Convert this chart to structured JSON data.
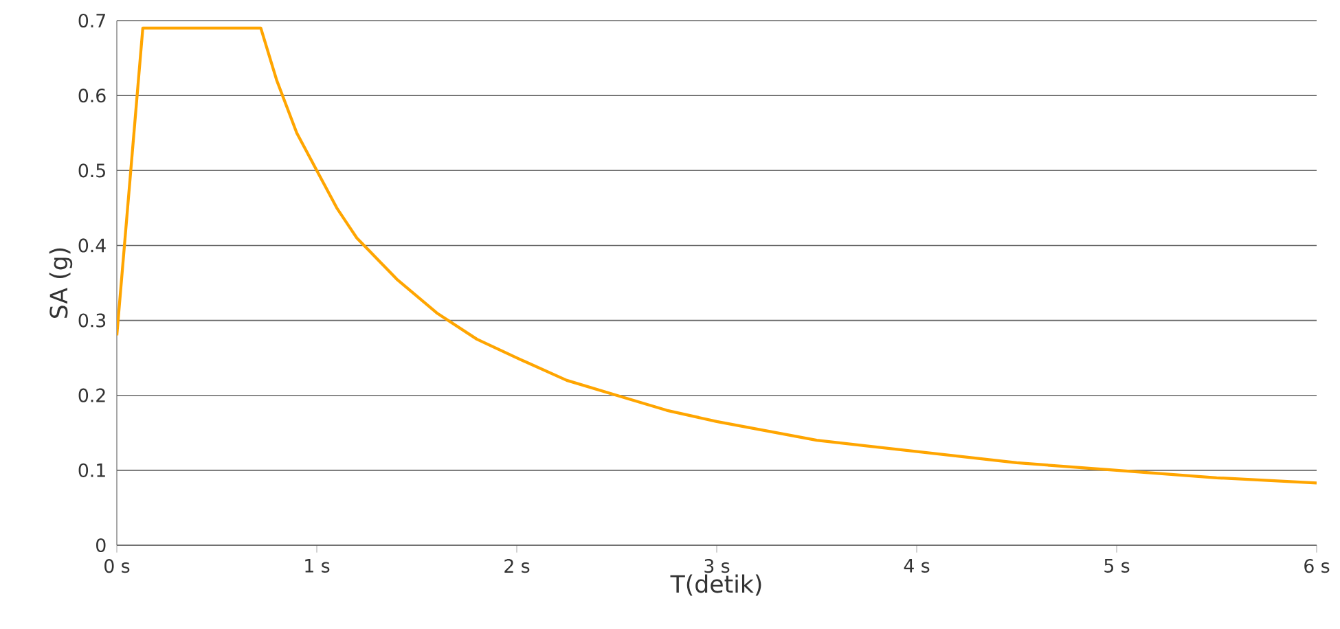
{
  "chart_data": {
    "type": "line",
    "xlabel": "T(detik)",
    "ylabel": "SA (g)",
    "x": [
      0,
      0.13,
      0.72,
      0.8,
      0.9,
      1.0,
      1.1,
      1.2,
      1.4,
      1.6,
      1.8,
      2.0,
      2.25,
      2.5,
      2.75,
      3.0,
      3.5,
      4.0,
      4.5,
      5.0,
      5.5,
      6.0
    ],
    "series": [
      {
        "color": "#ffa500",
        "values": [
          0.28,
          0.69,
          0.69,
          0.62,
          0.55,
          0.5,
          0.45,
          0.41,
          0.355,
          0.31,
          0.275,
          0.25,
          0.22,
          0.2,
          0.18,
          0.165,
          0.14,
          0.125,
          0.11,
          0.1,
          0.09,
          0.083
        ]
      }
    ],
    "xlim": [
      0,
      6
    ],
    "ylim": [
      0,
      0.7
    ],
    "xticks": [
      {
        "value": 0,
        "label": "0 s"
      },
      {
        "value": 1,
        "label": "1 s"
      },
      {
        "value": 2,
        "label": "2 s"
      },
      {
        "value": 3,
        "label": "3 s"
      },
      {
        "value": 4,
        "label": "4 s"
      },
      {
        "value": 5,
        "label": "5 s"
      },
      {
        "value": 6,
        "label": "6 s"
      }
    ],
    "yticks": [
      0,
      0.1,
      0.2,
      0.3,
      0.4,
      0.5,
      0.6,
      0.7
    ],
    "grid": "y",
    "marker": "none",
    "line_style": "solid"
  }
}
